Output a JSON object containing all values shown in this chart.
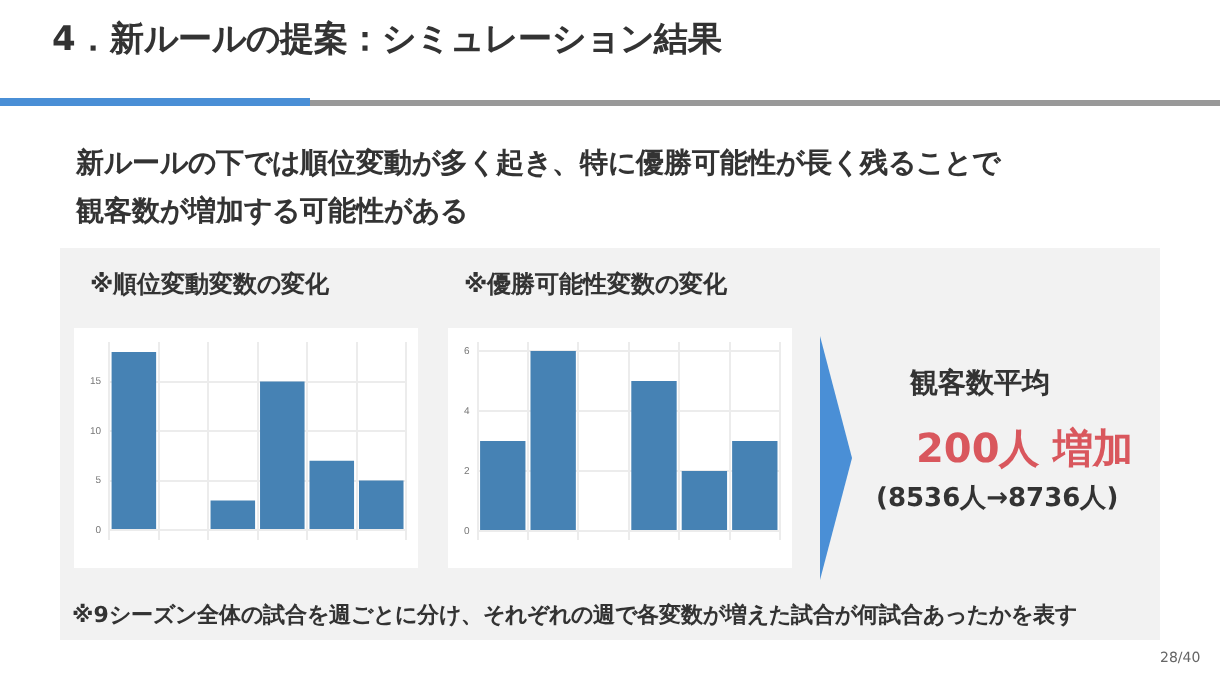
{
  "chart_data": [
    {
      "type": "other",
      "title": "4．新ルールの提案：シミュレーション結果",
      "subtitle": "新ルールの下では順位変動が多く起き、特に優勝可能性が長く残ることで観客数が増加する可能性がある",
      "annotations": [
        "※9シーズン全体の試合を週ごとに分け、それぞれの週で各変数が増えた試合が何試合あったかを表す",
        "28/40"
      ]
    },
    {
      "type": "bar",
      "title": "※順位変動変数の変化",
      "categories": [
        null,
        null,
        null,
        null,
        null,
        null
      ],
      "values": [
        18,
        0,
        3,
        15,
        7,
        5
      ],
      "color": "#4682b4",
      "ylim": [
        -1,
        19
      ],
      "yticks": [
        0,
        5,
        10,
        15
      ],
      "grid": true
    },
    {
      "type": "bar",
      "title": "※優勝可能性変数の変化",
      "categories": [
        null,
        null,
        null,
        null,
        null,
        null
      ],
      "values": [
        3,
        6,
        0,
        5,
        2,
        3
      ],
      "color": "#4682b4",
      "ylim": [
        -0.3,
        6.3
      ],
      "yticks": [
        0,
        2,
        4,
        6
      ],
      "grid": true
    },
    {
      "type": "other",
      "title": "観客数平均",
      "annotations": [
        "200人 増加",
        "(8536人→8736人)"
      ]
    }
  ]
}
